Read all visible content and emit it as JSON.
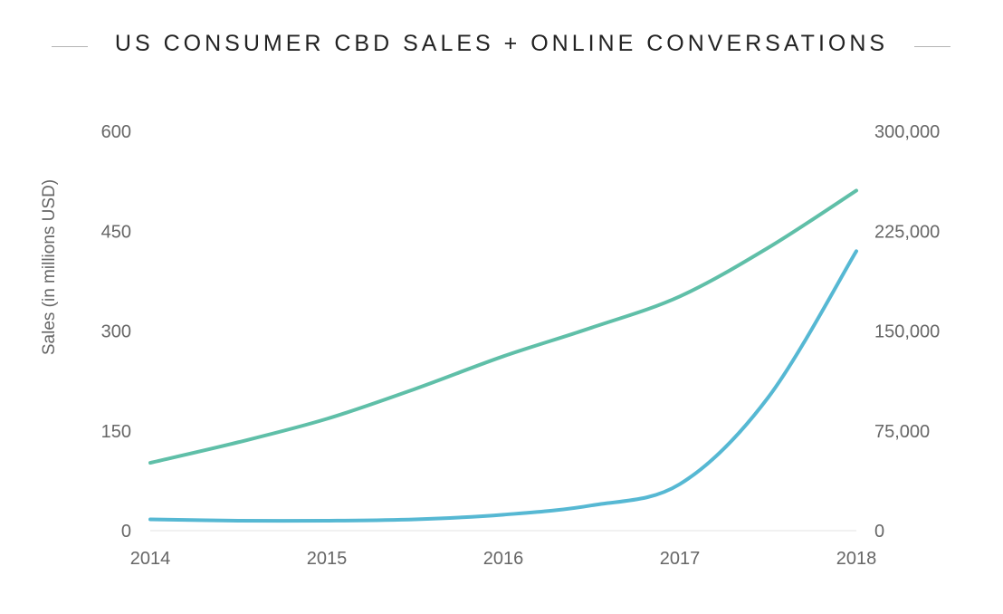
{
  "title": "US CONSUMER CBD SALES + ONLINE CONVERSATIONS",
  "chart_data": {
    "type": "line",
    "title": "US CONSUMER CBD SALES + ONLINE CONVERSATIONS",
    "xlabel": "",
    "ylabel": "Sales (in millions USD)",
    "y2label": "",
    "x": [
      "2014",
      "2015",
      "2016",
      "2017",
      "2018"
    ],
    "ylim": [
      0,
      600
    ],
    "y2lim": [
      0,
      300000
    ],
    "y_ticks": [
      "0",
      "150",
      "300",
      "450",
      "600"
    ],
    "y2_ticks": [
      "0",
      "75,000",
      "150,000",
      "225,000",
      "300,000"
    ],
    "grid": false,
    "series": [
      {
        "axis": "left",
        "color": "#5fbfa8",
        "x": [
          2014,
          2014.5,
          2015,
          2015.5,
          2016,
          2016.5,
          2017,
          2017.5,
          2018
        ],
        "values": [
          102,
          133,
          168,
          213,
          262,
          305,
          352,
          425,
          511
        ]
      },
      {
        "axis": "right",
        "color": "#56b8d3",
        "x": [
          2014,
          2014.5,
          2015,
          2015.5,
          2016,
          2016.5,
          2017,
          2017.5,
          2018
        ],
        "values": [
          8500,
          7500,
          7500,
          8500,
          12000,
          19000,
          35000,
          100000,
          210000
        ]
      }
    ]
  }
}
